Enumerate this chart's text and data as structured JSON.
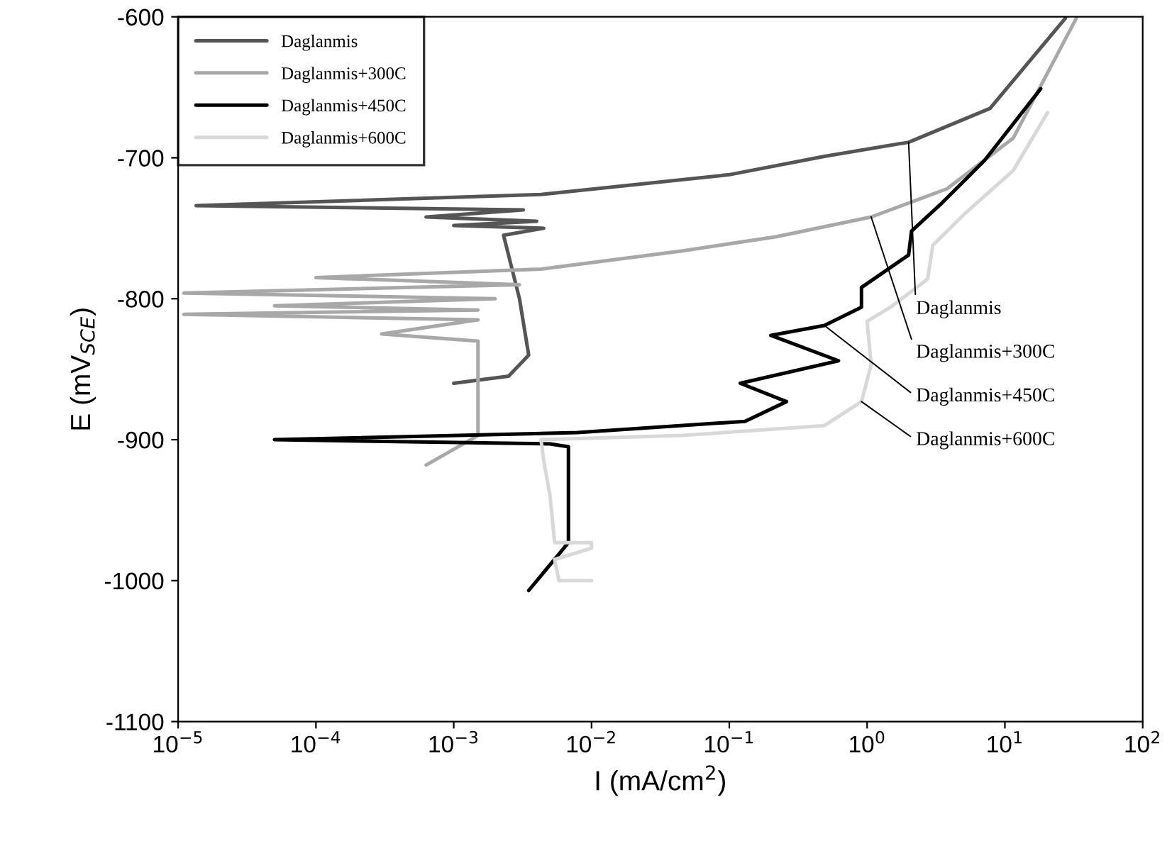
{
  "chart_data": {
    "type": "line",
    "xlabel": "I (mA/cm$^{2}$)",
    "ylabel": "E (mV$_{SCE}$)",
    "log": "x",
    "grid": false,
    "legend": "top left",
    "marker": "none",
    "line_style": "solid",
    "xlim": [
      1e-05,
      100
    ],
    "xticks": [
      {
        "value": 1e-05,
        "label": "10$^{−5}$"
      },
      {
        "value": 0.0001,
        "label": "10$^{−4}$"
      },
      {
        "value": 0.001,
        "label": "10$^{−3}$"
      },
      {
        "value": 0.01,
        "label": "10$^{−2}$"
      },
      {
        "value": 0.1,
        "label": "10$^{−1}$"
      },
      {
        "value": 1,
        "label": "10$^{0}$"
      },
      {
        "value": 10,
        "label": "10$^{1}$"
      },
      {
        "value": 100,
        "label": "10$^{2}$"
      }
    ],
    "ylim": [
      -1100,
      -600
    ],
    "yticks": [
      -1100,
      -1000,
      -900,
      -800,
      -700,
      -600
    ],
    "series": [
      {
        "name": "Daglanmis",
        "color": "#555555",
        "x": [
          27.5,
          7.8,
          2.0,
          0.49,
          0.1,
          0.021,
          0.0043,
          1.35e-05,
          0.0032,
          0.00063,
          0.004,
          0.001,
          0.0045,
          0.0023,
          0.003,
          0.0035,
          0.0025,
          0.001
        ],
        "values": [
          -601,
          -665,
          -689,
          -699,
          -712,
          -719,
          -726,
          -734,
          -737,
          -742,
          -745,
          -748,
          -750,
          -755,
          -800,
          -840,
          -855,
          -860
        ]
      },
      {
        "name": "Daglanmis+300C",
        "color": "#a8a8a8",
        "x": [
          33,
          11.5,
          3.8,
          1.07,
          0.22,
          0.046,
          0.0043,
          0.0001,
          0.003,
          1.1e-05,
          0.002,
          5e-05,
          0.0015,
          1.1e-05,
          0.0015,
          0.0003,
          0.0015,
          0.0015,
          0.0015,
          0.00063
        ],
        "values": [
          -601,
          -686,
          -722,
          -742,
          -756,
          -766,
          -779,
          -785,
          -790,
          -796,
          -800,
          -805,
          -808,
          -811,
          -815,
          -825,
          -830,
          -860,
          -897,
          -918
        ]
      },
      {
        "name": "Daglanmis+450C",
        "color": "#000000",
        "x": [
          18.2,
          7.1,
          3.5,
          2.1,
          2.0,
          0.91,
          0.91,
          0.49,
          0.2,
          0.62,
          0.12,
          0.26,
          0.13,
          0.0079,
          5e-05,
          0.005,
          0.0068,
          0.0068,
          0.0068,
          0.0035
        ],
        "values": [
          -651,
          -702,
          -732,
          -752,
          -769,
          -792,
          -806,
          -819,
          -826,
          -844,
          -860,
          -873,
          -887,
          -895,
          -900,
          -903,
          -905,
          -923,
          -973,
          -1007
        ]
      },
      {
        "name": "Daglanmis+600C",
        "color": "#d8d8d8",
        "x": [
          20.4,
          11.5,
          5.2,
          3.0,
          2.75,
          1.48,
          1.0,
          1.07,
          0.91,
          0.49,
          0.046,
          0.0043,
          0.0045,
          0.005,
          0.0054,
          0.01,
          0.01,
          0.0054,
          0.0058,
          0.01
        ],
        "values": [
          -668,
          -709,
          -739,
          -762,
          -786,
          -806,
          -816,
          -847,
          -873,
          -890,
          -897,
          -900,
          -915,
          -940,
          -973,
          -973,
          -977,
          -985,
          -1000,
          -1000
        ]
      }
    ],
    "annotations": [
      {
        "text": "Daglanmis",
        "x": 2.0,
        "y": -689
      },
      {
        "text": "Daglanmis+300C",
        "x": 1.07,
        "y": -742
      },
      {
        "text": "Daglanmis+450C",
        "x": 0.49,
        "y": -819
      },
      {
        "text": "Daglanmis+600C",
        "x": 0.91,
        "y": -873
      }
    ]
  }
}
